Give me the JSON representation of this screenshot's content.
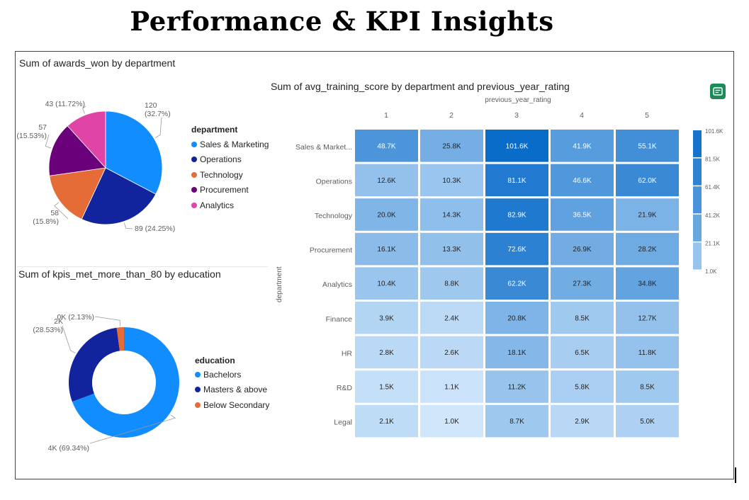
{
  "page_title": "Performance & KPI Insights",
  "colors": {
    "pie": [
      "#118dff",
      "#12239e",
      "#e66c37",
      "#6b007b",
      "#e044a7"
    ],
    "heat_min": "#cfe6fb",
    "heat_max": "#0a6cc9",
    "icon_bg": "#1e8a5a"
  },
  "icons": {
    "export": "export-icon"
  },
  "chart_data": [
    {
      "type": "pie",
      "title": "Sum of awards_won by department",
      "legend_title": "department",
      "legend_position": "right",
      "categories": [
        "Sales & Marketing",
        "Operations",
        "Technology",
        "Procurement",
        "Analytics"
      ],
      "values": [
        120,
        89,
        58,
        57,
        43
      ],
      "labels": [
        "120\n(32.7%)",
        "89 (24.25%)",
        "58\n(15.8%)",
        "57\n(15.53%)",
        "43 (11.72%)"
      ]
    },
    {
      "type": "pie",
      "subtype": "donut",
      "title": "Sum of kpis_met_more_than_80 by education",
      "legend_title": "education",
      "legend_position": "right",
      "categories": [
        "Bachelors",
        "Masters & above",
        "Below Secondary"
      ],
      "percent": [
        69.34,
        28.53,
        2.13
      ],
      "labels": [
        "4K (69.34%)",
        "2K\n(28.53%)",
        "0K (2.13%)"
      ]
    },
    {
      "type": "heatmap",
      "title": "Sum of avg_training_score by department and previous_year_rating",
      "xlabel": "previous_year_rating",
      "ylabel": "department",
      "x": [
        "1",
        "2",
        "3",
        "4",
        "5"
      ],
      "y": [
        "Sales & Market...",
        "Operations",
        "Technology",
        "Procurement",
        "Analytics",
        "Finance",
        "HR",
        "R&D",
        "Legal"
      ],
      "values": [
        [
          48.7,
          25.8,
          101.6,
          41.9,
          55.1
        ],
        [
          12.6,
          10.3,
          81.1,
          46.6,
          62.0
        ],
        [
          20.0,
          14.3,
          82.9,
          36.5,
          21.9
        ],
        [
          16.1,
          13.3,
          72.6,
          26.9,
          28.2
        ],
        [
          10.4,
          8.8,
          62.2,
          27.3,
          34.8
        ],
        [
          3.9,
          2.4,
          20.8,
          8.5,
          12.7
        ],
        [
          2.8,
          2.6,
          18.1,
          6.5,
          11.8
        ],
        [
          1.5,
          1.1,
          11.2,
          5.8,
          8.5
        ],
        [
          2.1,
          1.0,
          8.7,
          2.9,
          5.0
        ]
      ],
      "cell_labels": [
        [
          "48.7K",
          "25.8K",
          "101.6K",
          "41.9K",
          "55.1K"
        ],
        [
          "12.6K",
          "10.3K",
          "81.1K",
          "46.6K",
          "62.0K"
        ],
        [
          "20.0K",
          "14.3K",
          "82.9K",
          "36.5K",
          "21.9K"
        ],
        [
          "16.1K",
          "13.3K",
          "72.6K",
          "26.9K",
          "28.2K"
        ],
        [
          "10.4K",
          "8.8K",
          "62.2K",
          "27.3K",
          "34.8K"
        ],
        [
          "3.9K",
          "2.4K",
          "20.8K",
          "8.5K",
          "12.7K"
        ],
        [
          "2.8K",
          "2.6K",
          "18.1K",
          "6.5K",
          "11.8K"
        ],
        [
          "1.5K",
          "1.1K",
          "11.2K",
          "5.8K",
          "8.5K"
        ],
        [
          "2.1K",
          "1.0K",
          "8.7K",
          "2.9K",
          "5.0K"
        ]
      ],
      "unit": "K",
      "color_scale_labels": [
        "101.6K",
        "81.5K",
        "61.4K",
        "41.2K",
        "21.1K",
        "1.0K"
      ],
      "legend_position": "right"
    }
  ]
}
